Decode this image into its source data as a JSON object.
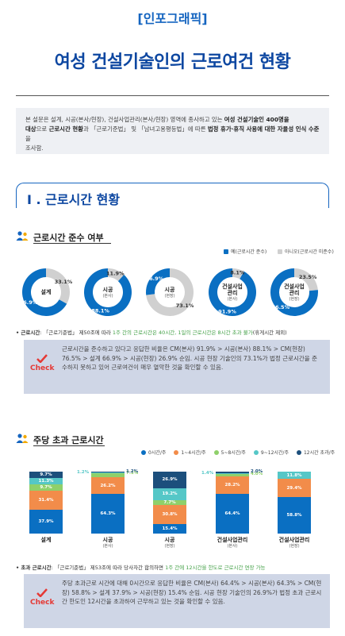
{
  "header": {
    "tag": "[인포그래픽]",
    "title": "여성 건설기술인의 근로여건 현황"
  },
  "intro": {
    "p1": "본 설문은 설계, 시공(본사/현장), 건설사업관리(본사/현장) 영역에 종사하고 있는 ",
    "b1": "여성 건설기술인 400명을",
    "b2": "대상",
    "p2": "으로 ",
    "b3": "근로시간 현황",
    "p3": "과 「근로기준법」 및 「남녀고용평등법」에 따른 ",
    "b4": "법정 휴가·휴직 사용에 대한 자율성 인식 수준",
    "p4": "을",
    "p5": "조사함."
  },
  "section1": {
    "title": "I . 근로시간 현황"
  },
  "compliance": {
    "title": "근로시간 준수 여부",
    "legend_yes": "예(근로시간 준수)",
    "legend_no": "아니오(근로시간 미준수)",
    "colors": {
      "yes": "#0a6fc2",
      "no": "#d0d0d0"
    },
    "donuts": [
      {
        "label": "설계",
        "sub": "",
        "yes": 66.9,
        "no": 33.1,
        "yes_text": "66.9%",
        "no_text": "33.1%"
      },
      {
        "label": "시공",
        "sub": "(본사)",
        "yes": 88.1,
        "no": 11.9,
        "yes_text": "88.1%",
        "no_text": "11.9%"
      },
      {
        "label": "시공",
        "sub": "(현장)",
        "yes": 26.9,
        "no": 73.1,
        "yes_text": "26.9%",
        "no_text": "73.1%"
      },
      {
        "label": "건설사업\n관리",
        "sub": "(본사)",
        "yes": 91.9,
        "no": 8.1,
        "yes_text": "91.9%",
        "no_text": "8.1%"
      },
      {
        "label": "건설사업\n관리",
        "sub": "(현장)",
        "yes": 76.5,
        "no": 23.5,
        "yes_text": "76.5%",
        "no_text": "23.5%"
      }
    ],
    "note_label": "근로시간",
    "note_text": ": 「근로기준법」 제50조에 따라 ",
    "note_hl": "1주 간의 근로시간은 40시간, 1일의 근로시간은 8시간 초과 불가",
    "note_tail": "(휴게시간 제외)",
    "check_label": "Check",
    "check_text": "근로시간을 준수하고 있다고 응답한 비율은 CM(본사) 91.9% > 시공(본사) 88.1% > CM(현장) 76.5% > 설계 66.9% > 시공(현장) 26.9% 순임. 시공 현장 기술인의 73.1%가 법정 근로시간을 준수하지 못하고 있어 근로여건이 매우 열악한 것을 확인할 수 있음."
  },
  "overtime": {
    "title": "주당 초과 근로시간",
    "legend": [
      {
        "label": "0시간/주",
        "color": "#0a6fc2"
      },
      {
        "label": "1~4시간/주",
        "color": "#f28c4a"
      },
      {
        "label": "5~8시간/주",
        "color": "#8fd06a"
      },
      {
        "label": "9~12시간/주",
        "color": "#55c7c7"
      },
      {
        "label": "12시간 초과/주",
        "color": "#1c4f7c"
      }
    ],
    "chart_data": {
      "type": "bar",
      "stacked": true,
      "categories": [
        "설계",
        "시공 (본사)",
        "시공 (현장)",
        "건설사업관리 (본사)",
        "건설사업관리 (현장)"
      ],
      "series": [
        {
          "name": "0시간/주",
          "values": [
            37.9,
            64.3,
            15.4,
            64.4,
            58.8
          ]
        },
        {
          "name": "1~4시간/주",
          "values": [
            31.4,
            26.2,
            30.8,
            28.2,
            29.4
          ]
        },
        {
          "name": "5~8시간/주",
          "values": [
            9.7,
            7.1,
            7.7,
            4.0,
            0
          ]
        },
        {
          "name": "9~12시간/주",
          "values": [
            11.3,
            1.2,
            19.2,
            1.4,
            11.8
          ]
        },
        {
          "name": "12시간 초과/주",
          "values": [
            9.7,
            1.2,
            26.9,
            2.0,
            0
          ]
        }
      ]
    },
    "cats": [
      {
        "label": "설계",
        "sub": ""
      },
      {
        "label": "시공",
        "sub": "(본사)"
      },
      {
        "label": "시공",
        "sub": "(현장)"
      },
      {
        "label": "건설사업관리",
        "sub": "(본사)"
      },
      {
        "label": "건설사업관리",
        "sub": "(현장)"
      }
    ],
    "note_label": "초과 근로시간",
    "note_text": ": 「근로기준법」 제53조에 따라 당사자간 합의하면 ",
    "note_hl": "1주 간에 12시간을 한도로 근로시간 연장 가능",
    "check_label": "Check",
    "check_text": "주당 초과근로 시간에 대해 0시간으로 응답한 비율은 CM(본사) 64.4% > 시공(본사) 64.3% > CM(현장) 58.8% > 설계 37.9% > 시공(현장) 15.4% 순임. 시공 현장 기술인의 26.9%가 법정 초과 근로시간 한도인 12시간을 초과하여 근무하고 있는 것을 확인할 수 있음."
  }
}
